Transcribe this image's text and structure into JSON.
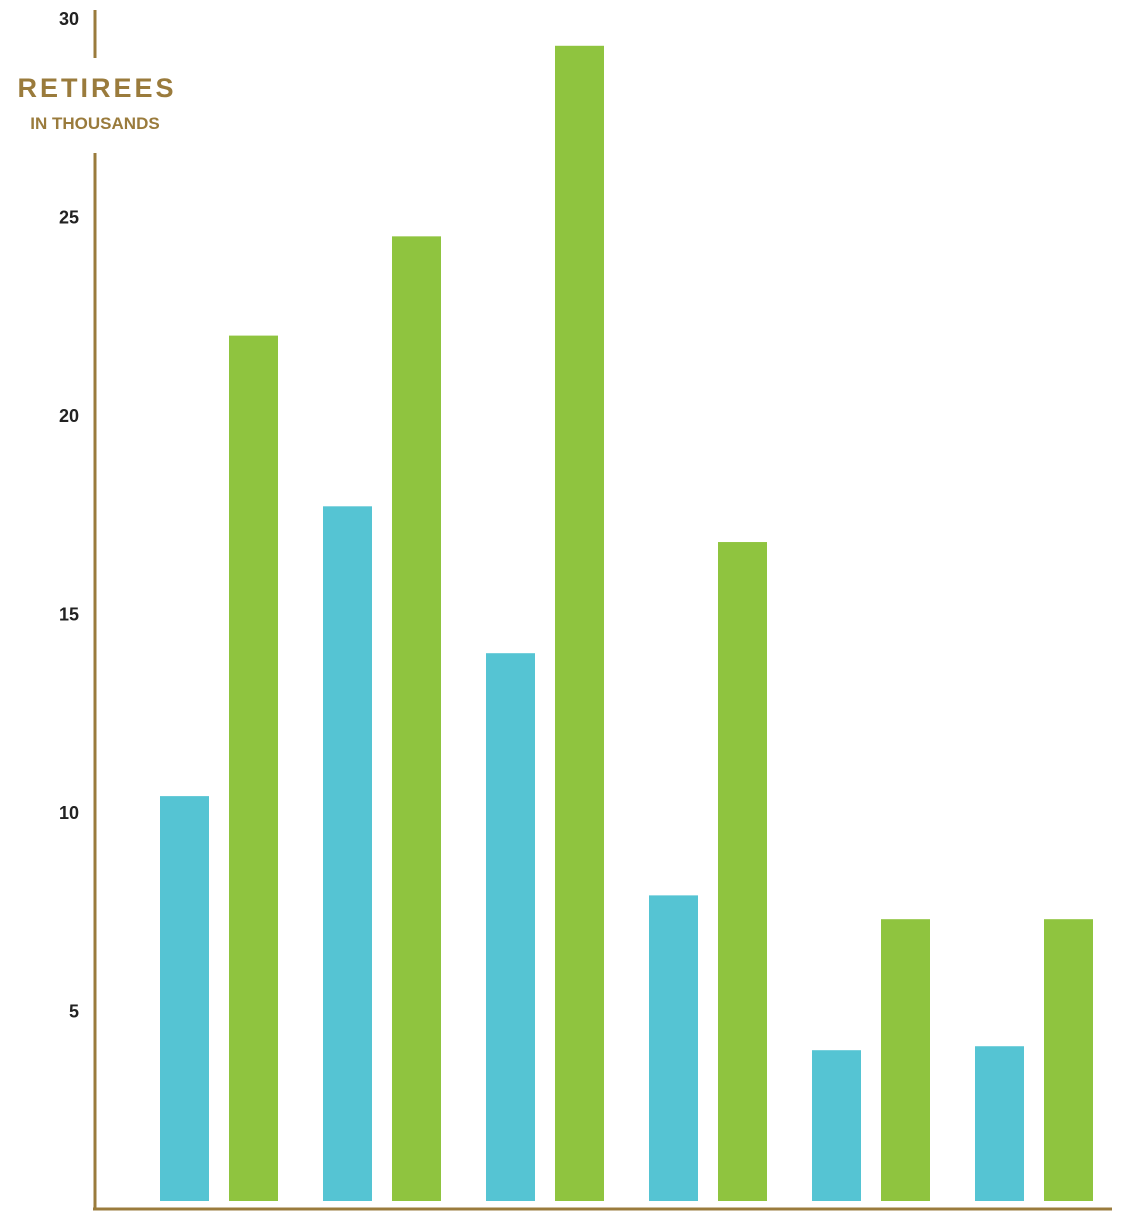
{
  "chart_data": {
    "type": "bar",
    "title": "",
    "ylabel": "RETIREES",
    "ylabel_sub": "IN THOUSANDS",
    "xlabel": "",
    "ylim": [
      0,
      30
    ],
    "yticks": [
      5,
      10,
      15,
      20,
      25,
      30
    ],
    "categories": [
      "",
      "",
      "",
      "",
      "",
      ""
    ],
    "series": [
      {
        "values": [
          10.4,
          17.7,
          14.0,
          7.9,
          4.0,
          4.1
        ]
      },
      {
        "values": [
          22.0,
          24.5,
          29.3,
          16.8,
          7.3,
          7.3
        ]
      }
    ],
    "grid": false,
    "legend": "none"
  },
  "colors": {
    "series": [
      "#55c4d3",
      "#8fc43f"
    ],
    "axis": "#9a7b3c",
    "ylabel": "#9a7b3c",
    "tick_text": "#222222"
  }
}
